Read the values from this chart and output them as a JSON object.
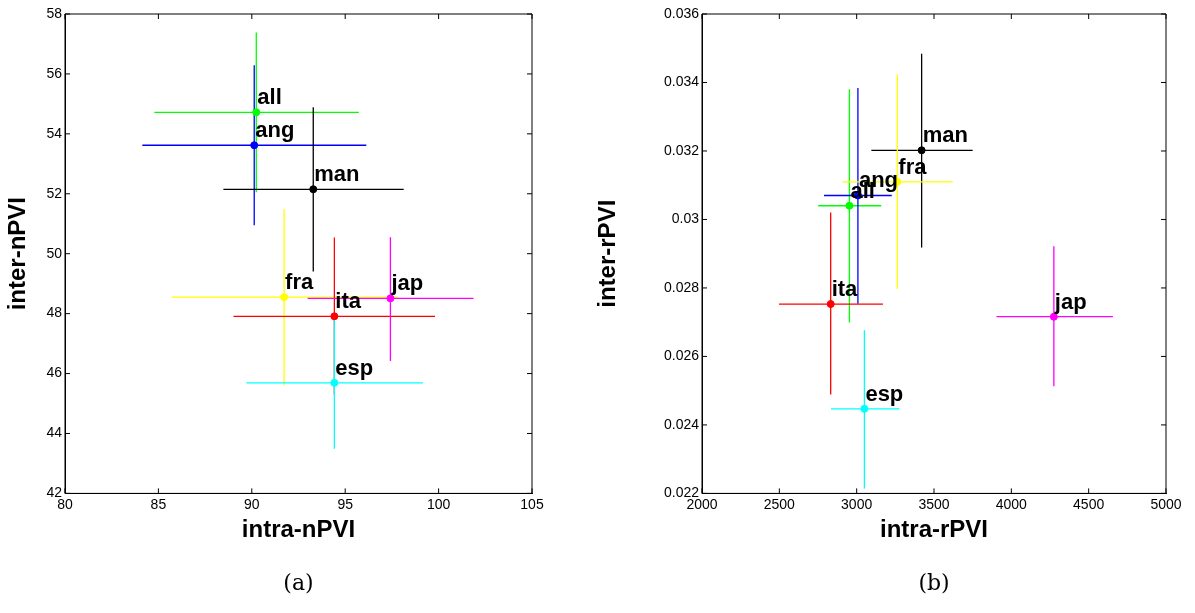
{
  "chart_data": [
    {
      "type": "scatter",
      "xlabel": "intra-nPVI",
      "ylabel": "inter-nPVI",
      "annotations": [
        "(a)"
      ],
      "marker": "circle",
      "xlim": [
        80,
        105
      ],
      "xticks": [
        80,
        85,
        90,
        95,
        100,
        105
      ],
      "ylim": [
        42,
        58
      ],
      "yticks": [
        42,
        44,
        46,
        48,
        50,
        52,
        54,
        56,
        58
      ],
      "series": [
        {
          "name": "all",
          "color": "#00ff00",
          "x": [
            90.24
          ],
          "values": [
            54.72
          ],
          "xerrors": [
            [
              84.78,
              95.73
            ]
          ],
          "errors": [
            [
              52.05,
              57.38
            ]
          ]
        },
        {
          "name": "ang",
          "color": "#0000ff",
          "x": [
            90.13
          ],
          "values": [
            53.62
          ],
          "xerrors": [
            [
              84.14,
              96.13
            ]
          ],
          "errors": [
            [
              50.95,
              56.29
            ]
          ]
        },
        {
          "name": "man",
          "color": "#000000",
          "x": [
            93.29
          ],
          "values": [
            52.15
          ],
          "xerrors": [
            [
              88.48,
              98.13
            ]
          ],
          "errors": [
            [
              49.41,
              54.89
            ]
          ]
        },
        {
          "name": "fra",
          "color": "#ffff00",
          "x": [
            91.73
          ],
          "values": [
            48.55
          ],
          "xerrors": [
            [
              85.72,
              97.83
            ]
          ],
          "errors": [
            [
              45.6,
              51.49
            ]
          ]
        },
        {
          "name": "ita",
          "color": "#ff0000",
          "x": [
            94.42
          ],
          "values": [
            47.91
          ],
          "xerrors": [
            [
              89.02,
              99.81
            ]
          ],
          "errors": [
            [
              45.3,
              50.54
            ]
          ]
        },
        {
          "name": "jap",
          "color": "#ff00ff",
          "x": [
            97.42
          ],
          "values": [
            48.51
          ],
          "xerrors": [
            [
              92.99,
              101.87
            ]
          ],
          "errors": [
            [
              46.42,
              50.55
            ]
          ]
        },
        {
          "name": "esp",
          "color": "#00ffff",
          "x": [
            94.42
          ],
          "values": [
            45.69
          ],
          "xerrors": [
            [
              89.71,
              99.16
            ]
          ],
          "errors": [
            [
              43.49,
              47.9
            ]
          ]
        }
      ]
    },
    {
      "type": "scatter",
      "xlabel": "intra-rPVI",
      "ylabel": "inter-rPVI",
      "annotations": [
        "(b)"
      ],
      "marker": "circle",
      "xlim": [
        2000,
        5000
      ],
      "xticks": [
        2000,
        2500,
        3000,
        3500,
        4000,
        4500,
        5000
      ],
      "ylim": [
        0.022,
        0.036
      ],
      "yticks": [
        0.022,
        0.024,
        0.026,
        0.028,
        0.03,
        0.032,
        0.034,
        0.036
      ],
      "series": [
        {
          "name": "all",
          "color": "#00ff00",
          "x": [
            2953
          ],
          "values": [
            0.0304
          ],
          "xerrors": [
            [
              2751,
              3159
            ]
          ],
          "errors": [
            [
              0.02699,
              0.0338
            ]
          ]
        },
        {
          "name": "ang",
          "color": "#0000ff",
          "x": [
            3008
          ],
          "values": [
            0.0307
          ],
          "xerrors": [
            [
              2789,
              3227
            ]
          ],
          "errors": [
            [
              0.02754,
              0.03384
            ]
          ]
        },
        {
          "name": "man",
          "color": "#000000",
          "x": [
            3420
          ],
          "values": [
            0.03202
          ],
          "xerrors": [
            [
              3095,
              3750
            ]
          ],
          "errors": [
            [
              0.02918,
              0.03484
            ]
          ]
        },
        {
          "name": "fra",
          "color": "#ffff00",
          "x": [
            3263
          ],
          "values": [
            0.0311
          ],
          "xerrors": [
            [
              2910,
              3622
            ]
          ],
          "errors": [
            [
              0.02797,
              0.03424
            ]
          ]
        },
        {
          "name": "ita",
          "color": "#ff0000",
          "x": [
            2832
          ],
          "values": [
            0.02753
          ],
          "xerrors": [
            [
              2498,
              3170
            ]
          ],
          "errors": [
            [
              0.02489,
              0.0302
            ]
          ]
        },
        {
          "name": "jap",
          "color": "#ff00ff",
          "x": [
            4275
          ],
          "values": [
            0.02716
          ],
          "xerrors": [
            [
              3904,
              4657
            ]
          ],
          "errors": [
            [
              0.02513,
              0.02922
            ]
          ]
        },
        {
          "name": "esp",
          "color": "#00ffff",
          "x": [
            3050
          ],
          "values": [
            0.02447
          ],
          "xerrors": [
            [
              2834,
              3276
            ]
          ],
          "errors": [
            [
              0.02214,
              0.02677
            ]
          ]
        }
      ]
    }
  ]
}
